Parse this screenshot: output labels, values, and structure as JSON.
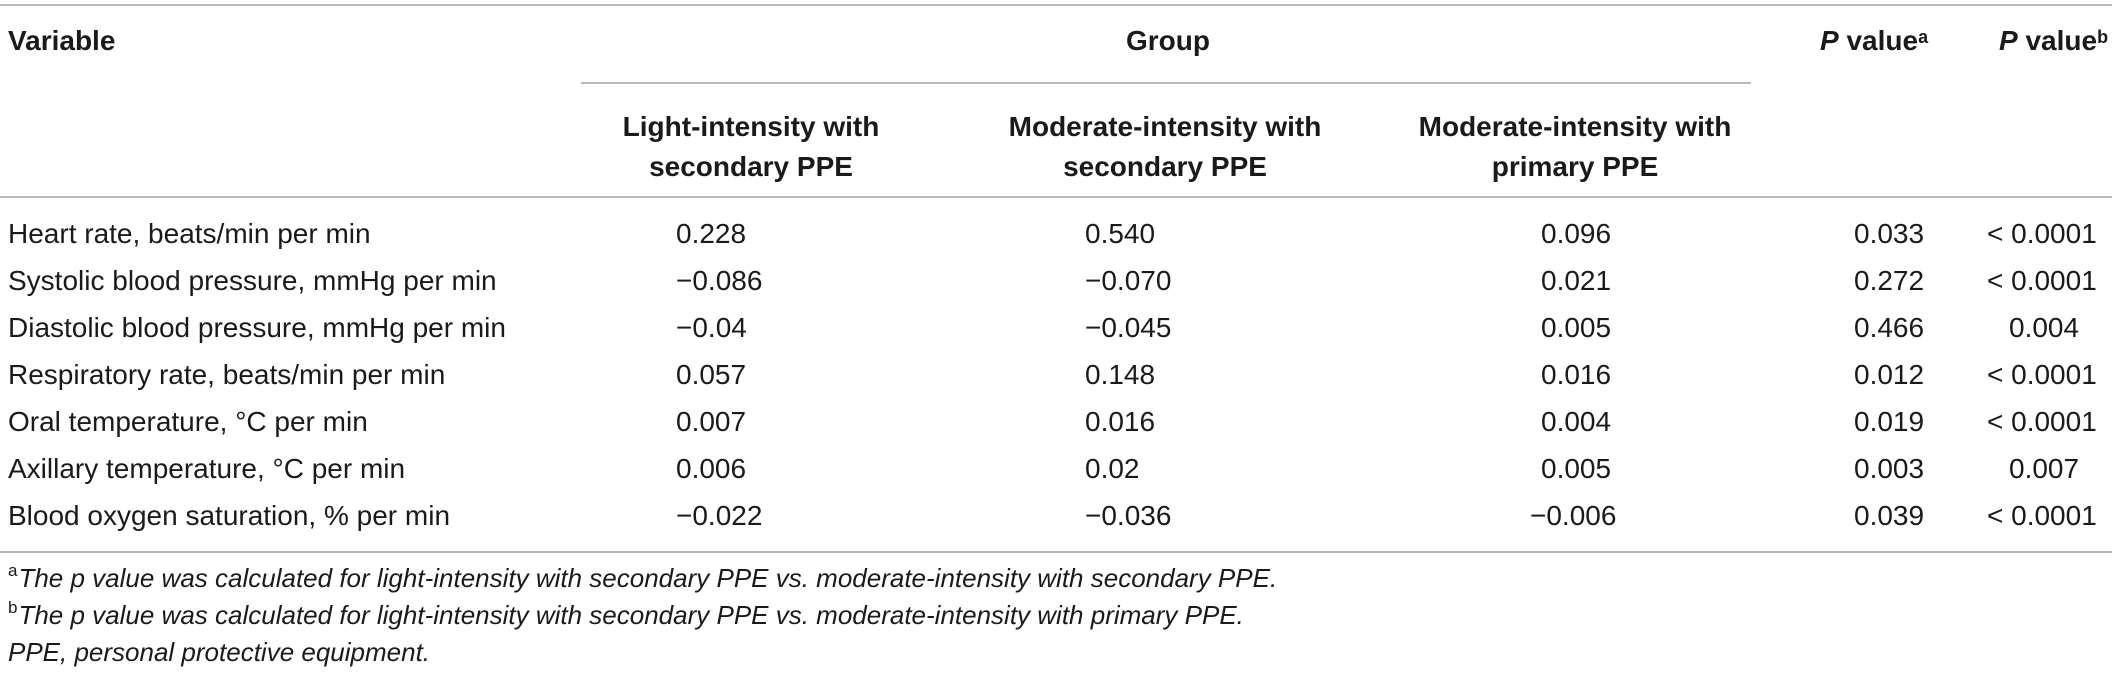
{
  "header": {
    "variable": "Variable",
    "group": "Group",
    "p_value_a_label": "P",
    "p_value_a_suffix": " value",
    "p_value_a_sup": "a",
    "p_value_b_label": "P",
    "p_value_b_suffix": " value",
    "p_value_b_sup": "b",
    "sub": {
      "c1_line1": "Light-intensity with",
      "c1_line2": "secondary PPE",
      "c2_line1": "Moderate-intensity with",
      "c2_line2": "secondary PPE",
      "c3_line1": "Moderate-intensity with",
      "c3_line2": "primary PPE"
    }
  },
  "rows": [
    {
      "label": "Heart rate, beats/min per min",
      "v1": "0.228",
      "v2": "0.540",
      "v3": "0.096",
      "pa": "0.033",
      "pb": "< 0.0001"
    },
    {
      "label": "Systolic blood pressure, mmHg per min",
      "v1": "−0.086",
      "v2": "−0.070",
      "v3": "0.021",
      "pa": "0.272",
      "pb": "< 0.0001"
    },
    {
      "label": "Diastolic blood pressure, mmHg per min",
      "v1": "−0.04",
      "v2": "−0.045",
      "v3": "0.005",
      "pa": "0.466",
      "pb": "0.004"
    },
    {
      "label": "Respiratory rate, beats/min per min",
      "v1": "0.057",
      "v2": "0.148",
      "v3": "0.016",
      "pa": "0.012",
      "pb": "< 0.0001"
    },
    {
      "label": "Oral temperature, °C per min",
      "v1": "0.007",
      "v2": "0.016",
      "v3": "0.004",
      "pa": "0.019",
      "pb": "< 0.0001"
    },
    {
      "label": "Axillary temperature, °C per min",
      "v1": "0.006",
      "v2": "0.02",
      "v3": "0.005",
      "pa": "0.003",
      "pb": "0.007"
    },
    {
      "label": "Blood oxygen saturation, % per min",
      "v1": "−0.022",
      "v2": "−0.036",
      "v3": "−0.006",
      "pa": "0.039",
      "pb": "< 0.0001"
    }
  ],
  "footnotes": {
    "a_mark": "a",
    "a_text": "The p value was calculated for light-intensity with secondary PPE vs. moderate-intensity with secondary PPE.",
    "b_mark": "b",
    "b_text": "The p value was calculated for light-intensity with secondary PPE vs. moderate-intensity with primary PPE.",
    "abbrev": "PPE, personal protective equipment."
  }
}
